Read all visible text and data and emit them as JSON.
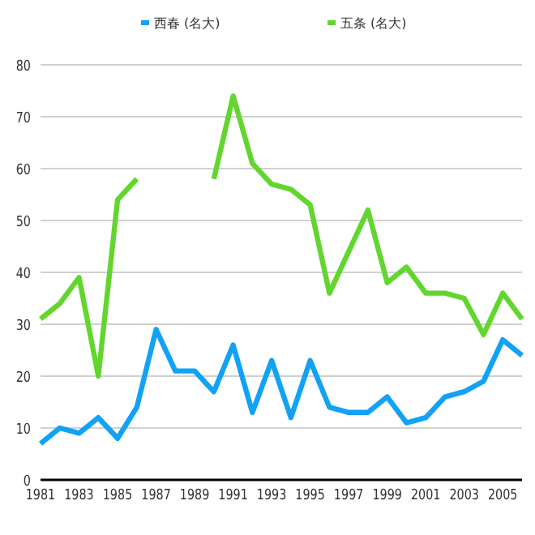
{
  "chart_data": {
    "type": "line",
    "categories": [
      "1981",
      null,
      "1983",
      null,
      "1985",
      null,
      "1987",
      null,
      "1989",
      null,
      "1991",
      null,
      "1993",
      null,
      "1995",
      null,
      "1997",
      null,
      "1999",
      null,
      "2001",
      null,
      "2003",
      null,
      "2005",
      null
    ],
    "series": [
      {
        "name": "西春 (名大)",
        "color": "#12a2f5",
        "values": [
          7,
          10,
          9,
          12,
          8,
          14,
          29,
          21,
          21,
          17,
          26,
          13,
          23,
          12,
          23,
          14,
          13,
          13,
          16,
          11,
          12,
          16,
          17,
          19,
          27,
          24
        ]
      },
      {
        "name": "五条 (名大)",
        "color": "#62d62e",
        "values": [
          31,
          34,
          39,
          20,
          54,
          58,
          null,
          null,
          null,
          58,
          74,
          61,
          57,
          56,
          53,
          36,
          44,
          52,
          38,
          41,
          36,
          36,
          35,
          28,
          36,
          31
        ]
      }
    ],
    "ylim": [
      0,
      80
    ],
    "yticks": [
      0,
      10,
      20,
      30,
      40,
      50,
      60,
      70,
      80
    ],
    "grid": "y",
    "legend": "top"
  }
}
